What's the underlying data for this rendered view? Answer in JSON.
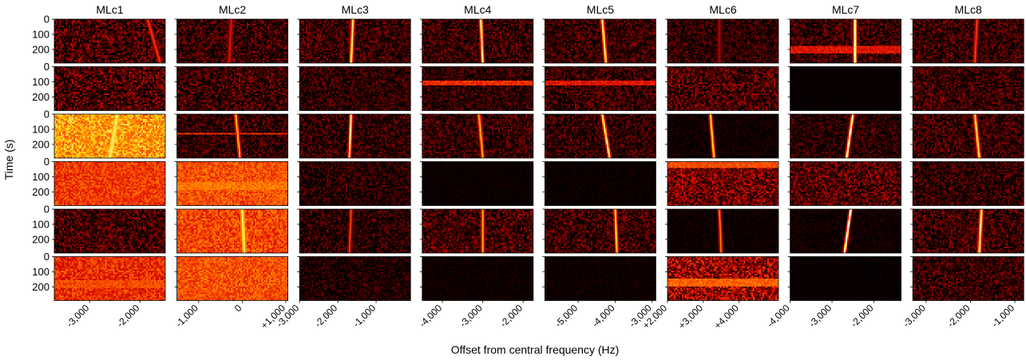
{
  "chart_data": {
    "type": "heatmap",
    "description_of_layout": "",
    "xlabel": "Offset from central frequency (Hz)",
    "ylabel": "Time (s)",
    "ytick_labels": [
      "0",
      "100",
      "200"
    ],
    "yticks": [
      0,
      100,
      200
    ],
    "ylim": [
      0,
      290
    ],
    "rows": 6,
    "colormap": [
      "#000000",
      "#2e0000",
      "#8a0000",
      "#e01000",
      "#ff6a00",
      "#ffd000",
      "#ffffff"
    ],
    "columns": [
      {
        "title": "MLc1",
        "xlim": [
          -3700,
          -1500
        ],
        "xticks": [
          -3000,
          -2000
        ],
        "xtick_labels": [
          "-3,000",
          "-2,000"
        ],
        "cells": [
          {
            "bg": 0.18,
            "noise": 0.25,
            "drift": [
              -1850,
              -1600
            ],
            "line": 0.55,
            "width": 4
          },
          {
            "bg": 0.2,
            "noise": 0.25
          },
          {
            "bg": 0.75,
            "noise": 0.15,
            "drift": [
              -2450,
              -2600
            ],
            "line": 0.9,
            "width": 5
          },
          {
            "bg": 0.58,
            "noise": 0.1
          },
          {
            "bg": 0.18,
            "noise": 0.22
          },
          {
            "bg": 0.55,
            "noise": 0.12,
            "hband": [
              160,
              210,
              0.6
            ]
          }
        ]
      },
      {
        "title": "MLc2",
        "xlim": [
          -1500,
          1050
        ],
        "xticks": [
          -1000,
          0,
          1000
        ],
        "xtick_labels": [
          "-1,000",
          "0",
          "+1,000"
        ],
        "cells": [
          {
            "bg": 0.16,
            "noise": 0.22,
            "drift": [
              -250,
              -300
            ],
            "line": 0.5,
            "width": 2
          },
          {
            "bg": 0.16,
            "noise": 0.22
          },
          {
            "bg": 0.14,
            "noise": 0.2,
            "drift": [
              -150,
              -50
            ],
            "line": 0.8,
            "width": 2,
            "hband": [
              120,
              135,
              0.55
            ]
          },
          {
            "bg": 0.62,
            "noise": 0.1,
            "hband": [
              130,
              190,
              0.68
            ]
          },
          {
            "bg": 0.6,
            "noise": 0.12,
            "drift": [
              0,
              50
            ],
            "line": 0.9,
            "width": 3
          },
          {
            "bg": 0.62,
            "noise": 0.1
          }
        ]
      },
      {
        "title": "MLc3",
        "xlim": [
          -3000,
          -100
        ],
        "xticks": [
          -3000,
          -2000,
          -1000
        ],
        "xtick_labels": [
          "-3,000",
          "-2,000",
          "-1,000"
        ],
        "cells": [
          {
            "bg": 0.16,
            "noise": 0.2,
            "drift": [
              -1600,
              -1650
            ],
            "line": 0.9,
            "width": 3
          },
          {
            "bg": 0.14,
            "noise": 0.18
          },
          {
            "bg": 0.14,
            "noise": 0.2,
            "drift": [
              -1650,
              -1700
            ],
            "line": 0.92,
            "width": 3
          },
          {
            "bg": 0.12,
            "noise": 0.18
          },
          {
            "bg": 0.12,
            "noise": 0.2,
            "drift": [
              -1650,
              -1700
            ],
            "line": 0.6,
            "width": 2
          },
          {
            "bg": 0.1,
            "noise": 0.16
          }
        ]
      },
      {
        "title": "MLc4",
        "xlim": [
          -4500,
          -1750
        ],
        "xticks": [
          -4000,
          -3000,
          -2000
        ],
        "xtick_labels": [
          "-4,000",
          "-3,000",
          "-2,000"
        ],
        "cells": [
          {
            "bg": 0.16,
            "noise": 0.2,
            "drift": [
              -3050,
              -3000
            ],
            "line": 0.92,
            "width": 3
          },
          {
            "bg": 0.14,
            "noise": 0.18,
            "hband": [
              95,
              120,
              0.55
            ]
          },
          {
            "bg": 0.15,
            "noise": 0.2,
            "drift": [
              -3100,
              -3000
            ],
            "line": 0.8,
            "width": 2
          },
          {
            "bg": 0.04,
            "noise": 0.04
          },
          {
            "bg": 0.18,
            "noise": 0.22,
            "drift": [
              -3000,
              -3000
            ],
            "line": 0.78,
            "width": 2
          },
          {
            "bg": 0.05,
            "noise": 0.05
          }
        ]
      },
      {
        "title": "MLc5",
        "xlim": [
          -5900,
          -2900
        ],
        "xticks": [
          -5000,
          -4000,
          -3000
        ],
        "xtick_labels": [
          "-5,000",
          "-4,000",
          "-3,000"
        ],
        "cells": [
          {
            "bg": 0.16,
            "noise": 0.2,
            "drift": [
              -4350,
              -4250
            ],
            "line": 0.9,
            "width": 3
          },
          {
            "bg": 0.16,
            "noise": 0.2,
            "hband": [
              95,
              120,
              0.5
            ]
          },
          {
            "bg": 0.14,
            "noise": 0.2,
            "drift": [
              -4350,
              -4150
            ],
            "line": 0.9,
            "width": 3
          },
          {
            "bg": 0.04,
            "noise": 0.05
          },
          {
            "bg": 0.16,
            "noise": 0.22,
            "drift": [
              -4000,
              -3950
            ],
            "line": 0.85,
            "width": 3
          },
          {
            "bg": 0.05,
            "noise": 0.05
          }
        ]
      },
      {
        "title": "MLc6",
        "xlim": [
          2000,
          5100
        ],
        "xticks": [
          2000,
          3000,
          4000
        ],
        "xtick_labels": [
          "+2,000",
          "+3,000",
          "+4,000"
        ],
        "cells": [
          {
            "bg": 0.14,
            "noise": 0.18,
            "drift": [
              3450,
              3450
            ],
            "line": 0.4,
            "width": 2
          },
          {
            "bg": 0.2,
            "noise": 0.22
          },
          {
            "bg": 0.06,
            "noise": 0.08,
            "drift": [
              3200,
              3300
            ],
            "line": 0.85,
            "width": 3
          },
          {
            "bg": 0.28,
            "noise": 0.22,
            "hband": [
              0,
              40,
              0.62
            ]
          },
          {
            "bg": 0.05,
            "noise": 0.06,
            "drift": [
              3450,
              3500
            ],
            "line": 0.7,
            "width": 2
          },
          {
            "bg": 0.36,
            "noise": 0.25,
            "hband": [
              150,
              200,
              0.65
            ]
          }
        ]
      },
      {
        "title": "MLc7",
        "xlim": [
          -4000,
          -1350
        ],
        "xticks": [
          -4000,
          -3000,
          -2000
        ],
        "xtick_labels": [
          "-4,000",
          "-3,000",
          "-2,000"
        ],
        "cells": [
          {
            "bg": 0.16,
            "noise": 0.2,
            "drift": [
              -2450,
              -2450
            ],
            "line": 0.98,
            "width": 3,
            "hband": [
              180,
              230,
              0.5
            ]
          },
          {
            "bg": 0.03,
            "noise": 0.03
          },
          {
            "bg": 0.12,
            "noise": 0.18,
            "drift": [
              -2500,
              -2650
            ],
            "line": 0.95,
            "width": 3
          },
          {
            "bg": 0.22,
            "noise": 0.22
          },
          {
            "bg": 0.06,
            "noise": 0.08,
            "drift": [
              -2550,
              -2700
            ],
            "line": 0.98,
            "width": 3
          },
          {
            "bg": 0.03,
            "noise": 0.03
          }
        ]
      },
      {
        "title": "MLc8",
        "xlim": [
          -3300,
          -800
        ],
        "xticks": [
          -3000,
          -2000,
          -1000
        ],
        "xtick_labels": [
          "-3,000",
          "-2,000",
          "-1,000"
        ],
        "cells": [
          {
            "bg": 0.16,
            "noise": 0.2,
            "drift": [
              -1850,
              -1900
            ],
            "line": 0.6,
            "width": 2
          },
          {
            "bg": 0.16,
            "noise": 0.2
          },
          {
            "bg": 0.16,
            "noise": 0.2,
            "drift": [
              -1900,
              -1800
            ],
            "line": 0.88,
            "width": 3
          },
          {
            "bg": 0.14,
            "noise": 0.2
          },
          {
            "bg": 0.16,
            "noise": 0.22,
            "drift": [
              -1750,
              -1800
            ],
            "line": 0.92,
            "width": 3
          },
          {
            "bg": 0.16,
            "noise": 0.2
          }
        ]
      }
    ]
  }
}
